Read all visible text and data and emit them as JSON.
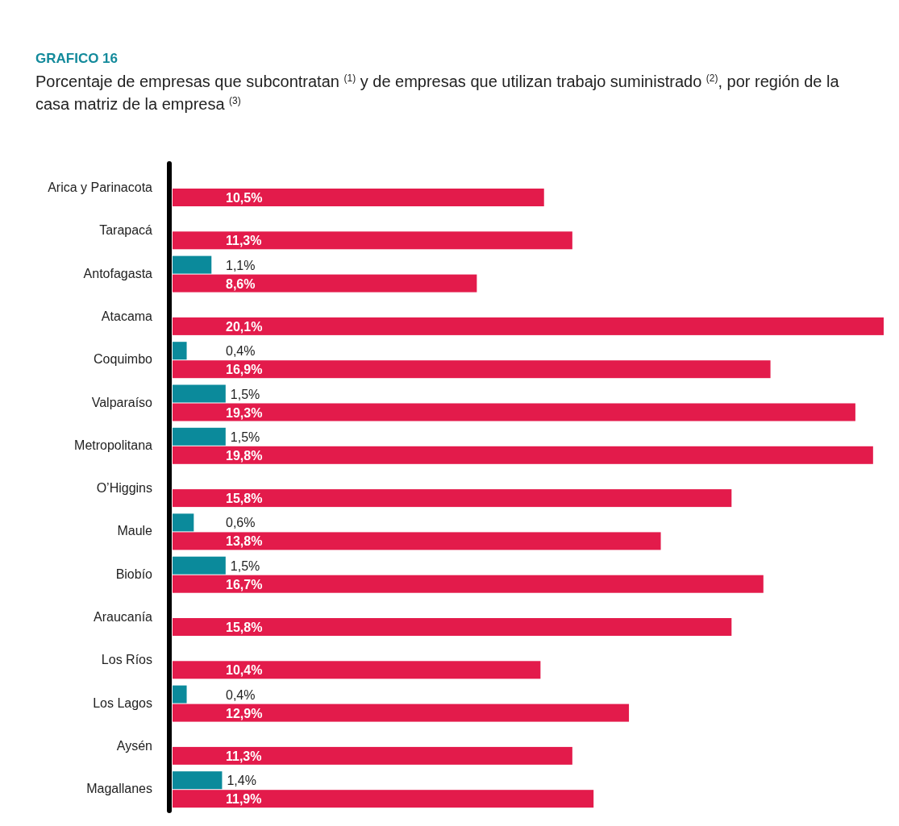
{
  "chart_data": {
    "type": "bar",
    "orientation": "horizontal",
    "title": "GRAFICO 16",
    "subtitle": "Porcentaje de empresas que subcontratan $^{(1)}$ y de empresas que utilizan trabajo suministrado $^{(2)}$, por región de la casa matriz de la empresa $^{(3)}$",
    "categories": [
      "Arica y Parinacota",
      "Tarapacá",
      "Antofagasta",
      "Atacama",
      "Coquimbo",
      "Valparaíso",
      "Metropolitana",
      "O’Higgins",
      "Maule",
      "Biobío",
      "Araucanía",
      "Los Ríos",
      "Los Lagos",
      "Aysén",
      "Magallanes"
    ],
    "series": [
      {
        "color": "#0b8a9b",
        "values": [
          null,
          null,
          1.1,
          null,
          0.4,
          1.5,
          1.5,
          null,
          0.6,
          1.5,
          null,
          null,
          0.4,
          null,
          1.4
        ],
        "value_labels": [
          null,
          null,
          "1,1%",
          null,
          "0,4%",
          "1,5%",
          "1,5%",
          null,
          "0,6%",
          "1,5%",
          null,
          null,
          "0,4%",
          null,
          "1,4%"
        ]
      },
      {
        "color": "#e31b4b",
        "values": [
          10.5,
          11.3,
          8.6,
          20.1,
          16.9,
          19.3,
          19.8,
          15.8,
          13.8,
          16.7,
          15.8,
          10.4,
          12.9,
          11.3,
          11.9
        ],
        "value_labels": [
          "10,5%",
          "11,3%",
          "8,6%",
          "20,1%",
          "16,9%",
          "19,3%",
          "19,8%",
          "15,8%",
          "13,8%",
          "16,7%",
          "15,8%",
          "10,4%",
          "12,9%",
          "11,3%",
          "11,9%"
        ]
      }
    ]
  }
}
